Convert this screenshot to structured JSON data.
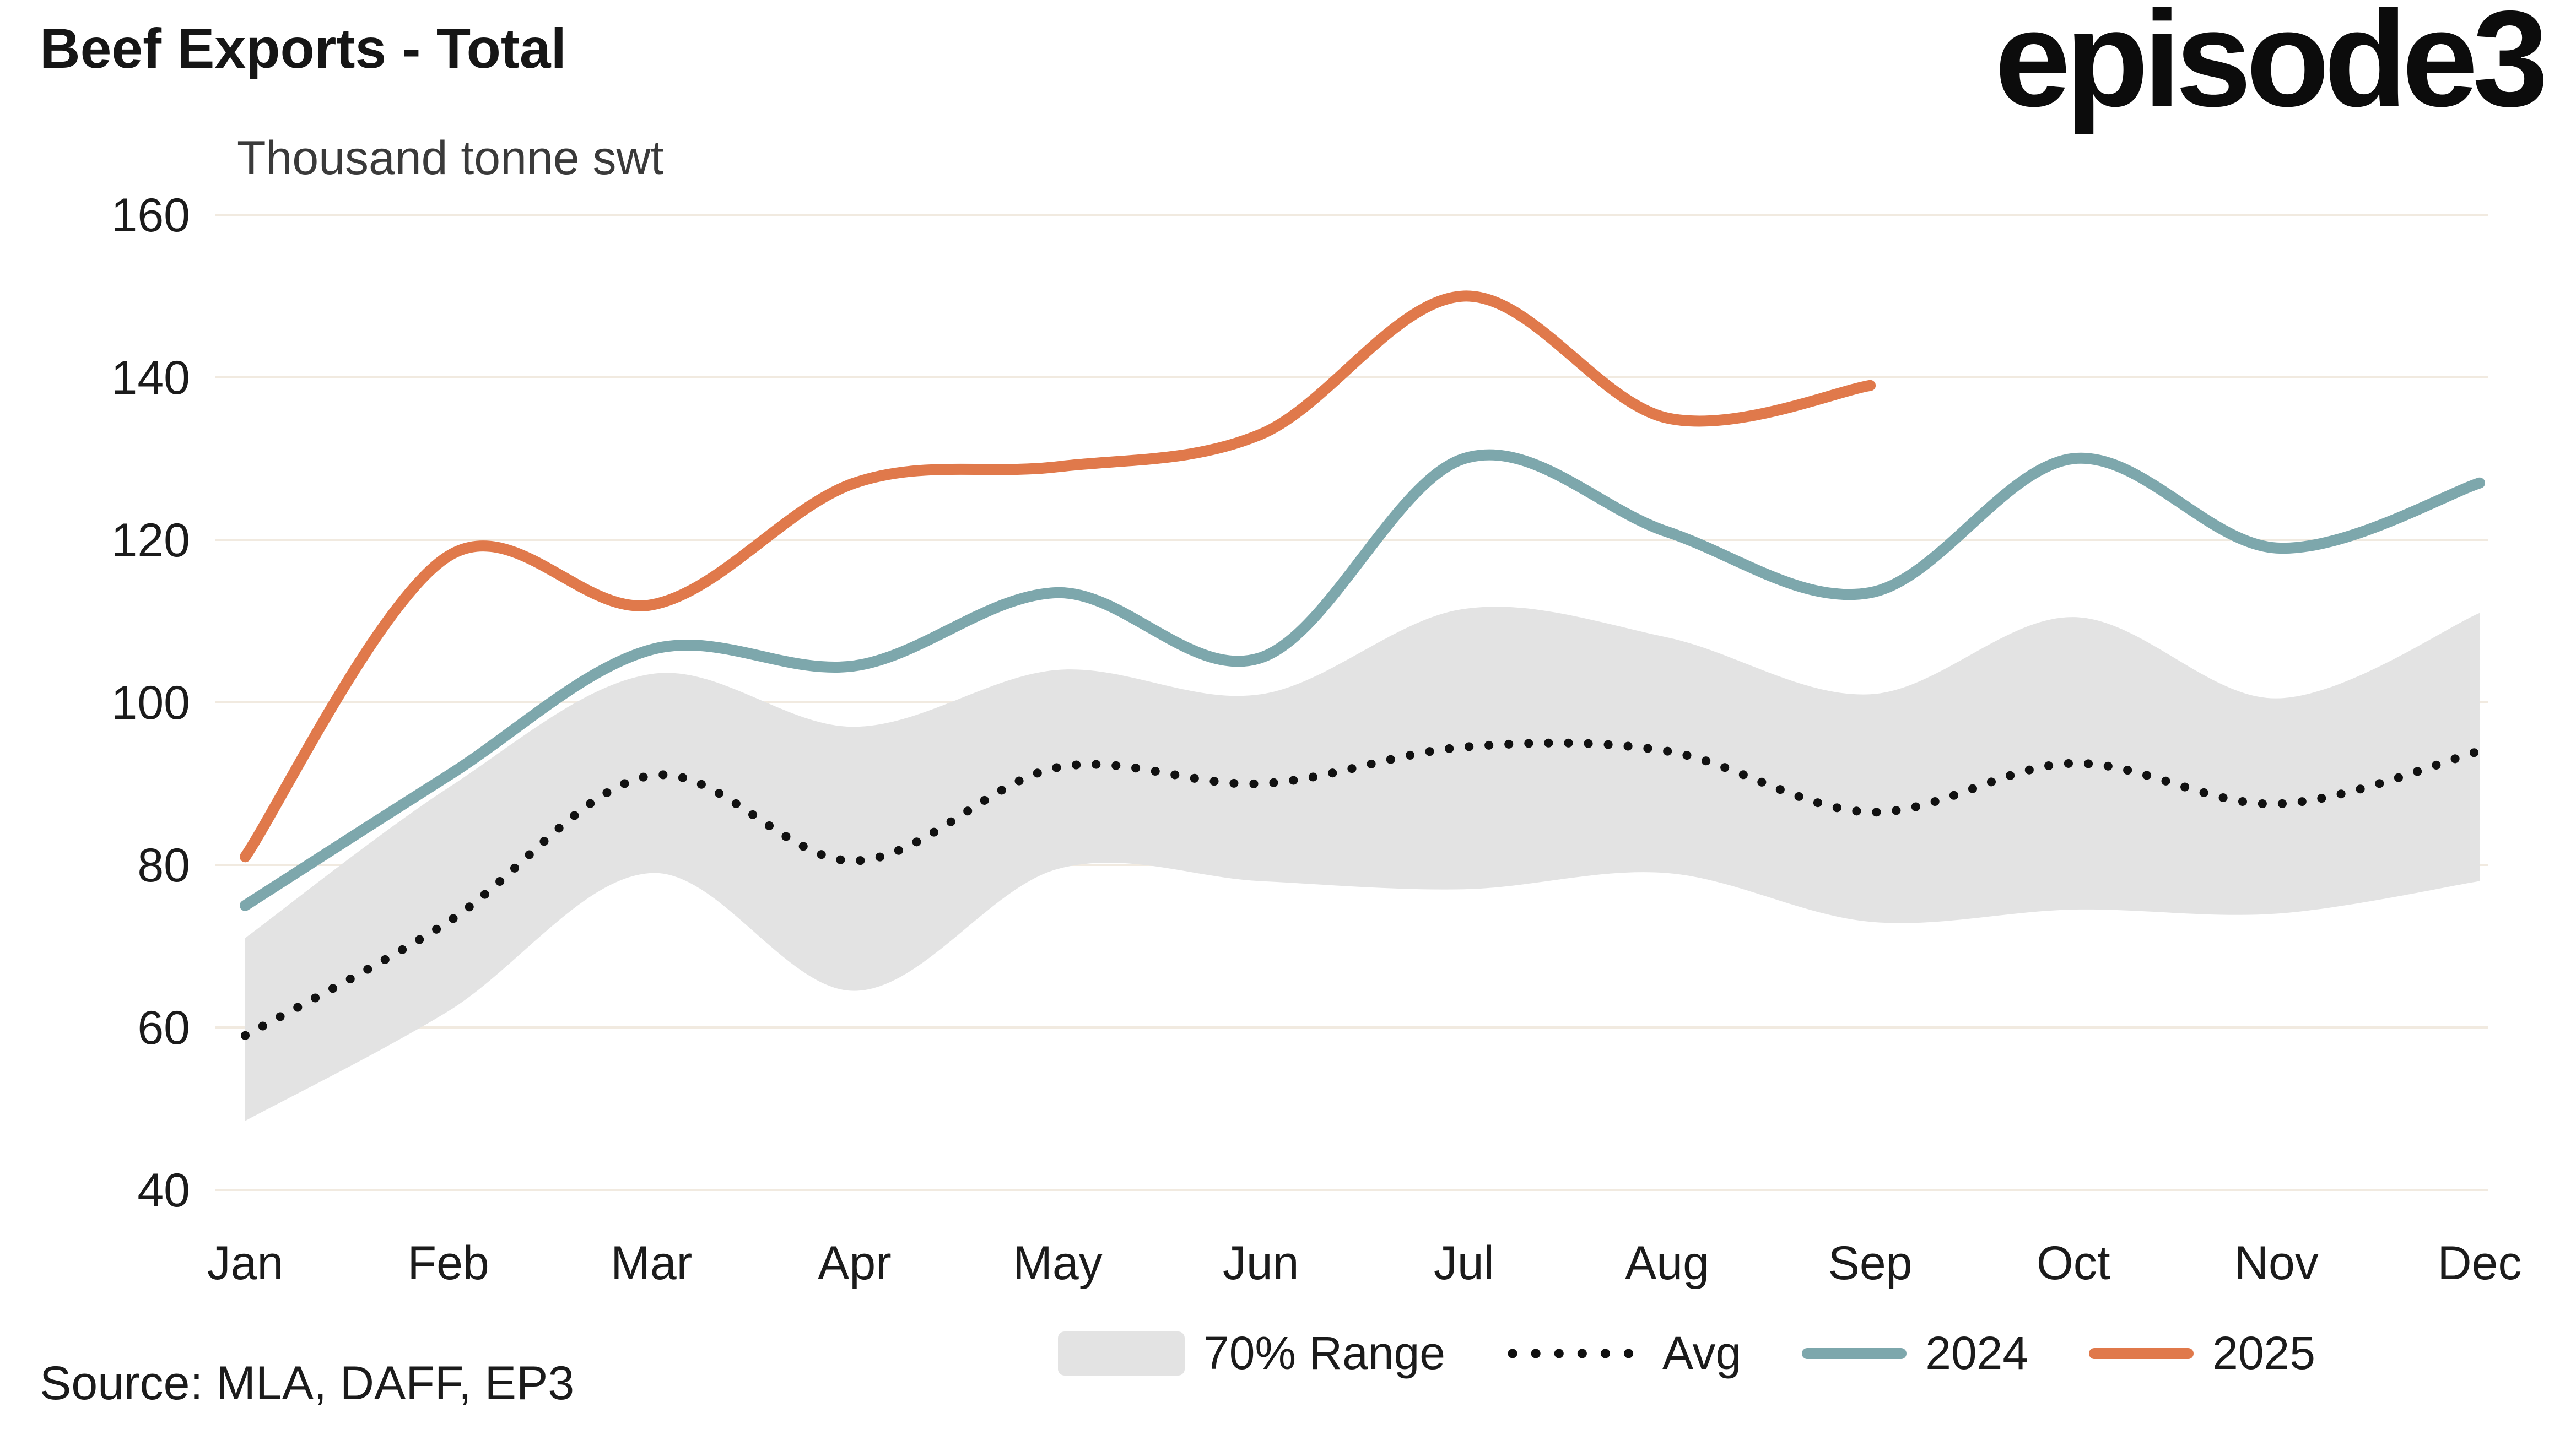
{
  "header": {
    "title": "Beef Exports - Total",
    "subtitle": "Thousand tonne swt",
    "logo": "episode3"
  },
  "source": "Source: MLA, DAFF, EP3",
  "legend": {
    "items": [
      {
        "label": "70% Range",
        "type": "band",
        "color": "#e3e3e3"
      },
      {
        "label": "Avg",
        "type": "dotted",
        "color": "#111111"
      },
      {
        "label": "2024",
        "type": "line",
        "color": "#7da7ac"
      },
      {
        "label": "2025",
        "type": "line",
        "color": "#e0794b"
      }
    ]
  },
  "chart_data": {
    "type": "line",
    "title": "Beef Exports - Total",
    "ylabel": "Thousand tonne swt",
    "ylim": [
      40,
      160
    ],
    "yticks": [
      40,
      60,
      80,
      100,
      120,
      140,
      160
    ],
    "categories": [
      "Jan",
      "Feb",
      "Mar",
      "Apr",
      "May",
      "Jun",
      "Jul",
      "Aug",
      "Sep",
      "Oct",
      "Nov",
      "Dec"
    ],
    "grid": "horizontal",
    "legend_position": "bottom",
    "band": {
      "name": "70% Range",
      "color": "#e3e3e3",
      "upper": [
        71,
        89.5,
        103.5,
        97,
        104,
        101,
        111.5,
        108,
        101,
        110.5,
        100.5,
        111
      ],
      "lower": [
        48.5,
        62,
        79,
        64.5,
        79.5,
        78,
        77,
        79,
        73,
        74.5,
        74,
        78
      ]
    },
    "series": [
      {
        "name": "Avg",
        "style": "dotted",
        "color": "#111111",
        "values": [
          59,
          73,
          91,
          80.5,
          92,
          90,
          94.5,
          94,
          86.5,
          92.5,
          87.5,
          94
        ]
      },
      {
        "name": "2024",
        "style": "solid",
        "color": "#7da7ac",
        "values": [
          75,
          91,
          106.5,
          104.5,
          113.5,
          105.5,
          130,
          121,
          113.5,
          130,
          119,
          127
        ]
      },
      {
        "name": "2025",
        "style": "solid",
        "color": "#e0794b",
        "values": [
          81,
          118,
          112,
          127,
          129,
          133,
          150,
          135,
          139
        ]
      }
    ]
  }
}
